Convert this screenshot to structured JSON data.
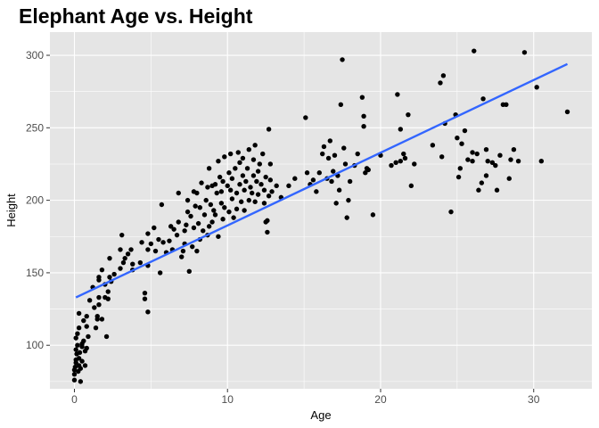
{
  "chart_data": {
    "type": "scatter",
    "title": "Elephant Age vs. Height",
    "xlabel": "Age",
    "ylabel": "Height",
    "xlim": [
      -1.6,
      33.8
    ],
    "ylim": [
      70,
      316
    ],
    "xticks": [
      0,
      10,
      20,
      30
    ],
    "yticks": [
      100,
      150,
      200,
      250,
      300
    ],
    "grid": true,
    "colors": {
      "panel": "#e5e5e5",
      "grid": "#ffffff",
      "points": "#000000",
      "fit_line": "#3366ff"
    },
    "fit_line": {
      "x": [
        0.1,
        32.2
      ],
      "y": [
        133,
        294
      ]
    },
    "points": [
      [
        0.0,
        76
      ],
      [
        0.0,
        80
      ],
      [
        0.0,
        83
      ],
      [
        0.05,
        85
      ],
      [
        0.1,
        88
      ],
      [
        0.1,
        90
      ],
      [
        0.15,
        94
      ],
      [
        0.1,
        97
      ],
      [
        0.2,
        100
      ],
      [
        0.1,
        105
      ],
      [
        0.2,
        108
      ],
      [
        0.3,
        112
      ],
      [
        0.25,
        82
      ],
      [
        0.3,
        86
      ],
      [
        0.3,
        91
      ],
      [
        0.35,
        95
      ],
      [
        0.4,
        75
      ],
      [
        0.4,
        84
      ],
      [
        0.5,
        89
      ],
      [
        0.5,
        99
      ],
      [
        0.5,
        101
      ],
      [
        0.6,
        103
      ],
      [
        0.6,
        117
      ],
      [
        0.7,
        86
      ],
      [
        0.7,
        96
      ],
      [
        0.8,
        98
      ],
      [
        0.8,
        113
      ],
      [
        0.8,
        120
      ],
      [
        0.9,
        106
      ],
      [
        0.3,
        122
      ],
      [
        1.0,
        131
      ],
      [
        1.2,
        140
      ],
      [
        1.3,
        126
      ],
      [
        1.4,
        112
      ],
      [
        1.5,
        118
      ],
      [
        1.5,
        120
      ],
      [
        1.6,
        128
      ],
      [
        1.6,
        133
      ],
      [
        1.6,
        145
      ],
      [
        1.6,
        147
      ],
      [
        1.8,
        152
      ],
      [
        1.8,
        118
      ],
      [
        2.0,
        133
      ],
      [
        2.0,
        142
      ],
      [
        2.1,
        106
      ],
      [
        2.2,
        132
      ],
      [
        2.2,
        137
      ],
      [
        2.3,
        147
      ],
      [
        2.3,
        160
      ],
      [
        2.4,
        144
      ],
      [
        2.6,
        149
      ],
      [
        3.0,
        153
      ],
      [
        3.0,
        166
      ],
      [
        3.1,
        176
      ],
      [
        3.2,
        157
      ],
      [
        3.3,
        160
      ],
      [
        3.5,
        163
      ],
      [
        3.7,
        166
      ],
      [
        3.8,
        156
      ],
      [
        3.8,
        152
      ],
      [
        4.3,
        157
      ],
      [
        4.4,
        171
      ],
      [
        4.6,
        136
      ],
      [
        4.6,
        132
      ],
      [
        4.8,
        155
      ],
      [
        4.8,
        123
      ],
      [
        4.8,
        166
      ],
      [
        4.8,
        177
      ],
      [
        5.0,
        170
      ],
      [
        5.2,
        181
      ],
      [
        5.3,
        165
      ],
      [
        5.5,
        173
      ],
      [
        5.6,
        150
      ],
      [
        5.7,
        197
      ],
      [
        5.8,
        171
      ],
      [
        6.0,
        164
      ],
      [
        6.2,
        172
      ],
      [
        6.3,
        182
      ],
      [
        6.4,
        166
      ],
      [
        6.5,
        180
      ],
      [
        6.7,
        176
      ],
      [
        6.8,
        185
      ],
      [
        6.8,
        205
      ],
      [
        7.0,
        161
      ],
      [
        7.1,
        165
      ],
      [
        7.2,
        170
      ],
      [
        7.2,
        179
      ],
      [
        7.3,
        183
      ],
      [
        7.4,
        192
      ],
      [
        7.4,
        200
      ],
      [
        7.5,
        151
      ],
      [
        7.6,
        189
      ],
      [
        7.7,
        168
      ],
      [
        7.8,
        181
      ],
      [
        7.8,
        206
      ],
      [
        7.9,
        196
      ],
      [
        8.0,
        165
      ],
      [
        8.0,
        205
      ],
      [
        8.1,
        184
      ],
      [
        8.2,
        173
      ],
      [
        8.2,
        195
      ],
      [
        8.3,
        212
      ],
      [
        8.4,
        179
      ],
      [
        8.5,
        190
      ],
      [
        8.6,
        200
      ],
      [
        8.7,
        176
      ],
      [
        8.7,
        209
      ],
      [
        8.8,
        222
      ],
      [
        8.8,
        182
      ],
      [
        8.9,
        197
      ],
      [
        9.0,
        185
      ],
      [
        9.0,
        210
      ],
      [
        9.1,
        193
      ],
      [
        9.2,
        211
      ],
      [
        9.2,
        190
      ],
      [
        9.3,
        205
      ],
      [
        9.4,
        175
      ],
      [
        9.4,
        227
      ],
      [
        9.5,
        216
      ],
      [
        9.6,
        198
      ],
      [
        9.6,
        206
      ],
      [
        9.7,
        187
      ],
      [
        9.7,
        213
      ],
      [
        9.8,
        195
      ],
      [
        9.8,
        230
      ],
      [
        10.0,
        210
      ],
      [
        10.1,
        219
      ],
      [
        10.1,
        192
      ],
      [
        10.2,
        207
      ],
      [
        10.2,
        232
      ],
      [
        10.3,
        201
      ],
      [
        10.3,
        215
      ],
      [
        10.4,
        188
      ],
      [
        10.5,
        222
      ],
      [
        10.6,
        194
      ],
      [
        10.6,
        205
      ],
      [
        10.7,
        233
      ],
      [
        10.8,
        211
      ],
      [
        10.8,
        226
      ],
      [
        10.9,
        199
      ],
      [
        11.0,
        217
      ],
      [
        11.0,
        229
      ],
      [
        11.1,
        207
      ],
      [
        11.1,
        193
      ],
      [
        11.2,
        213
      ],
      [
        11.3,
        222
      ],
      [
        11.4,
        200
      ],
      [
        11.4,
        235
      ],
      [
        11.5,
        209
      ],
      [
        11.6,
        205
      ],
      [
        11.7,
        217
      ],
      [
        11.7,
        228
      ],
      [
        11.8,
        199
      ],
      [
        11.8,
        238
      ],
      [
        11.9,
        213
      ],
      [
        12.0,
        204
      ],
      [
        12.0,
        220
      ],
      [
        12.1,
        225
      ],
      [
        12.2,
        211
      ],
      [
        12.3,
        232
      ],
      [
        12.4,
        198
      ],
      [
        12.4,
        207
      ],
      [
        12.5,
        216
      ],
      [
        12.5,
        185
      ],
      [
        12.6,
        186
      ],
      [
        12.6,
        178
      ],
      [
        12.7,
        203
      ],
      [
        12.7,
        249
      ],
      [
        12.8,
        214
      ],
      [
        12.8,
        225
      ],
      [
        12.9,
        206
      ],
      [
        13.2,
        210
      ],
      [
        13.5,
        202
      ],
      [
        14.0,
        210
      ],
      [
        14.4,
        215
      ],
      [
        15.1,
        257
      ],
      [
        15.2,
        219
      ],
      [
        15.4,
        211
      ],
      [
        15.6,
        214
      ],
      [
        15.8,
        206
      ],
      [
        16.0,
        219
      ],
      [
        16.2,
        232
      ],
      [
        16.5,
        215
      ],
      [
        16.6,
        229
      ],
      [
        16.7,
        241
      ],
      [
        16.8,
        213
      ],
      [
        16.9,
        220
      ],
      [
        17.0,
        231
      ],
      [
        17.1,
        198
      ],
      [
        17.2,
        217
      ],
      [
        17.3,
        207
      ],
      [
        17.4,
        266
      ],
      [
        17.5,
        297
      ],
      [
        17.6,
        236
      ],
      [
        17.7,
        225
      ],
      [
        17.8,
        188
      ],
      [
        17.9,
        200
      ],
      [
        18.0,
        213
      ],
      [
        18.3,
        224
      ],
      [
        18.5,
        232
      ],
      [
        18.8,
        271
      ],
      [
        18.9,
        258
      ],
      [
        18.9,
        251
      ],
      [
        19.0,
        219
      ],
      [
        19.1,
        222
      ],
      [
        19.2,
        221
      ],
      [
        19.5,
        190
      ],
      [
        20.0,
        231
      ],
      [
        20.7,
        224
      ],
      [
        21.1,
        273
      ],
      [
        21.3,
        249
      ],
      [
        21.3,
        227
      ],
      [
        21.5,
        232
      ],
      [
        21.6,
        229
      ],
      [
        21.8,
        259
      ],
      [
        22.0,
        210
      ],
      [
        22.2,
        225
      ],
      [
        23.4,
        238
      ],
      [
        23.9,
        281
      ],
      [
        24.1,
        286
      ],
      [
        24.2,
        253
      ],
      [
        24.6,
        192
      ],
      [
        24.9,
        259
      ],
      [
        25.0,
        243
      ],
      [
        25.2,
        222
      ],
      [
        25.3,
        239
      ],
      [
        25.5,
        248
      ],
      [
        25.7,
        228
      ],
      [
        26.0,
        227
      ],
      [
        26.0,
        233
      ],
      [
        26.1,
        303
      ],
      [
        26.3,
        232
      ],
      [
        26.6,
        212
      ],
      [
        26.7,
        270
      ],
      [
        26.9,
        235
      ],
      [
        27.0,
        227
      ],
      [
        27.3,
        226
      ],
      [
        27.6,
        207
      ],
      [
        27.8,
        231
      ],
      [
        28.0,
        266
      ],
      [
        28.2,
        266
      ],
      [
        28.4,
        215
      ],
      [
        28.5,
        228
      ],
      [
        28.7,
        235
      ],
      [
        29.0,
        227
      ],
      [
        29.4,
        302
      ],
      [
        30.2,
        278
      ],
      [
        30.5,
        227
      ],
      [
        32.2,
        261
      ],
      [
        25.1,
        216
      ],
      [
        26.4,
        207
      ],
      [
        26.9,
        217
      ],
      [
        27.5,
        224
      ],
      [
        24.0,
        230
      ],
      [
        21.0,
        226
      ],
      [
        16.3,
        237
      ]
    ]
  }
}
